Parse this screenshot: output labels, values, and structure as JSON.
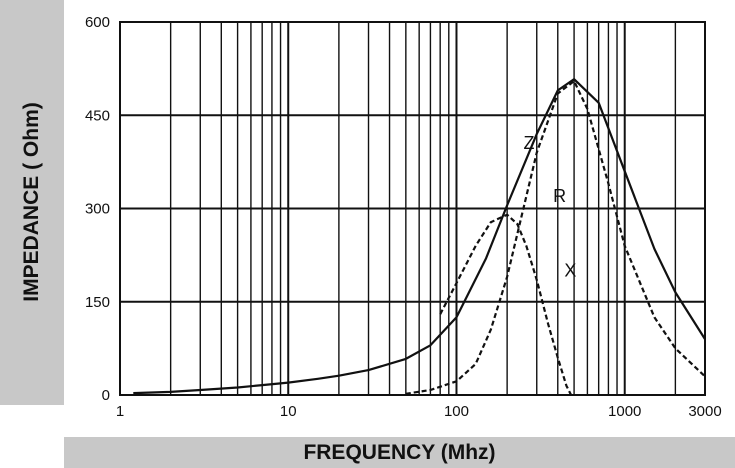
{
  "chart_data": {
    "type": "line",
    "xlabel": "FREQUENCY (Mhz)",
    "ylabel": "IMPEDANCE ( Ohm)",
    "xscale": "log",
    "xlim": [
      1,
      3000
    ],
    "ylim": [
      0,
      600
    ],
    "grid": true,
    "legend": "none",
    "x_ticks": [
      {
        "value": 1,
        "label": "1"
      },
      {
        "value": 10,
        "label": "10"
      },
      {
        "value": 100,
        "label": "100"
      },
      {
        "value": 1000,
        "label": "1000"
      },
      {
        "value": 3000,
        "label": "3000"
      }
    ],
    "y_ticks": [
      {
        "value": 0,
        "label": "0"
      },
      {
        "value": 150,
        "label": "150"
      },
      {
        "value": 300,
        "label": "300"
      },
      {
        "value": 450,
        "label": "450"
      },
      {
        "value": 600,
        "label": "600"
      }
    ],
    "series": [
      {
        "name": "Z",
        "style": "solid",
        "x": [
          1.2,
          2,
          3,
          5,
          7,
          10,
          15,
          20,
          30,
          50,
          70,
          100,
          150,
          200,
          300,
          400,
          500,
          700,
          1000,
          1500,
          2000,
          3000
        ],
        "y": [
          3,
          5,
          8,
          12,
          16,
          20,
          26,
          31,
          40,
          58,
          80,
          125,
          220,
          305,
          420,
          490,
          508,
          470,
          360,
          235,
          165,
          90
        ]
      },
      {
        "name": "R",
        "style": "dashed",
        "x": [
          50,
          70,
          100,
          130,
          160,
          200,
          250,
          300,
          400,
          500,
          600,
          800,
          1000,
          1500,
          2000,
          3000
        ],
        "y": [
          2,
          8,
          22,
          50,
          105,
          190,
          300,
          390,
          485,
          505,
          460,
          340,
          240,
          125,
          75,
          30
        ]
      },
      {
        "name": "X",
        "style": "dashed",
        "x": [
          80,
          100,
          130,
          160,
          200,
          230,
          260,
          300,
          350,
          400,
          450,
          480
        ],
        "y": [
          130,
          180,
          240,
          278,
          290,
          275,
          240,
          185,
          115,
          60,
          15,
          0
        ]
      }
    ],
    "annotations": [
      {
        "text": "Z",
        "x": 270,
        "y": 405
      },
      {
        "text": "R",
        "x": 410,
        "y": 320
      },
      {
        "text": "X",
        "x": 475,
        "y": 200
      }
    ]
  }
}
